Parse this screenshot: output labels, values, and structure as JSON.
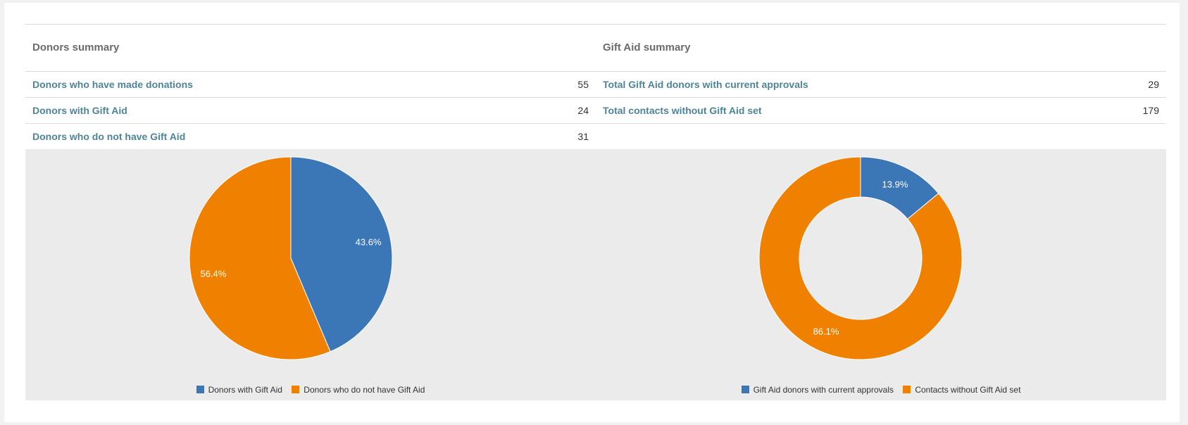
{
  "colors": {
    "blue": "#3b76b6",
    "orange": "#f08100",
    "link": "#4d8497"
  },
  "donors": {
    "title": "Donors summary",
    "rows": [
      {
        "label": "Donors who have made donations",
        "value": "55"
      },
      {
        "label": "Donors with Gift Aid",
        "value": "24"
      },
      {
        "label": "Donors who do not have Gift Aid",
        "value": "31"
      }
    ]
  },
  "giftaid": {
    "title": "Gift Aid summary",
    "rows": [
      {
        "label": "Total Gift Aid donors with current approvals",
        "value": "29"
      },
      {
        "label": "Total contacts without Gift Aid set",
        "value": "179"
      }
    ]
  },
  "chart_data": [
    {
      "type": "pie",
      "title": "",
      "categories": [
        "Donors with Gift Aid",
        "Donors who do not have Gift Aid"
      ],
      "values": [
        24,
        31
      ],
      "labels": [
        "43.6%",
        "56.4%"
      ],
      "colors": [
        "#3b76b6",
        "#f08100"
      ],
      "legend": "bottom-center"
    },
    {
      "type": "pie",
      "subtype": "donut",
      "title": "",
      "categories": [
        "Gift Aid donors with current approvals",
        "Contacts without Gift Aid set"
      ],
      "values": [
        29,
        179
      ],
      "labels": [
        "13.9%",
        "86.1%"
      ],
      "colors": [
        "#3b76b6",
        "#f08100"
      ],
      "legend": "bottom-center"
    }
  ]
}
